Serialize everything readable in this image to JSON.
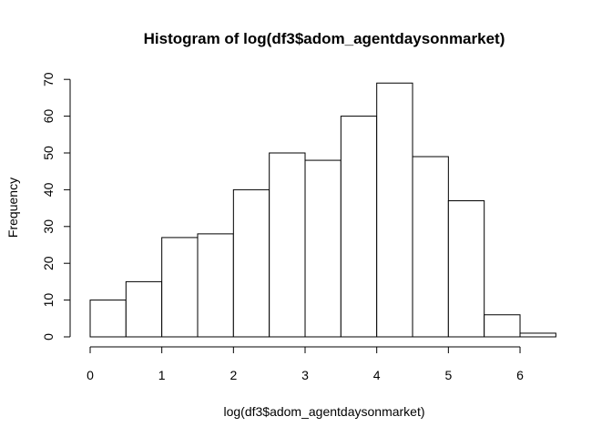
{
  "chart_data": {
    "type": "bar",
    "title": "Histogram of log(df3$adom_agentdaysonmarket)",
    "xlabel": "log(df3$adom_agentdaysonmarket)",
    "ylabel": "Frequency",
    "bins": [
      {
        "x0": 0.0,
        "x1": 0.5,
        "count": 10
      },
      {
        "x0": 0.5,
        "x1": 1.0,
        "count": 15
      },
      {
        "x0": 1.0,
        "x1": 1.5,
        "count": 27
      },
      {
        "x0": 1.5,
        "x1": 2.0,
        "count": 28
      },
      {
        "x0": 2.0,
        "x1": 2.5,
        "count": 40
      },
      {
        "x0": 2.5,
        "x1": 3.0,
        "count": 50
      },
      {
        "x0": 3.0,
        "x1": 3.5,
        "count": 48
      },
      {
        "x0": 3.5,
        "x1": 4.0,
        "count": 60
      },
      {
        "x0": 4.0,
        "x1": 4.5,
        "count": 69
      },
      {
        "x0": 4.5,
        "x1": 5.0,
        "count": 49
      },
      {
        "x0": 5.0,
        "x1": 5.5,
        "count": 37
      },
      {
        "x0": 5.5,
        "x1": 6.0,
        "count": 6
      },
      {
        "x0": 6.0,
        "x1": 6.5,
        "count": 1
      }
    ],
    "xticks": [
      "0",
      "1",
      "2",
      "3",
      "4",
      "5",
      "6"
    ],
    "yticks": [
      "0",
      "10",
      "20",
      "30",
      "40",
      "50",
      "60",
      "70"
    ],
    "xlim": [
      0,
      6.5
    ],
    "ylim": [
      0,
      70
    ],
    "grid": false,
    "legend": "none"
  }
}
